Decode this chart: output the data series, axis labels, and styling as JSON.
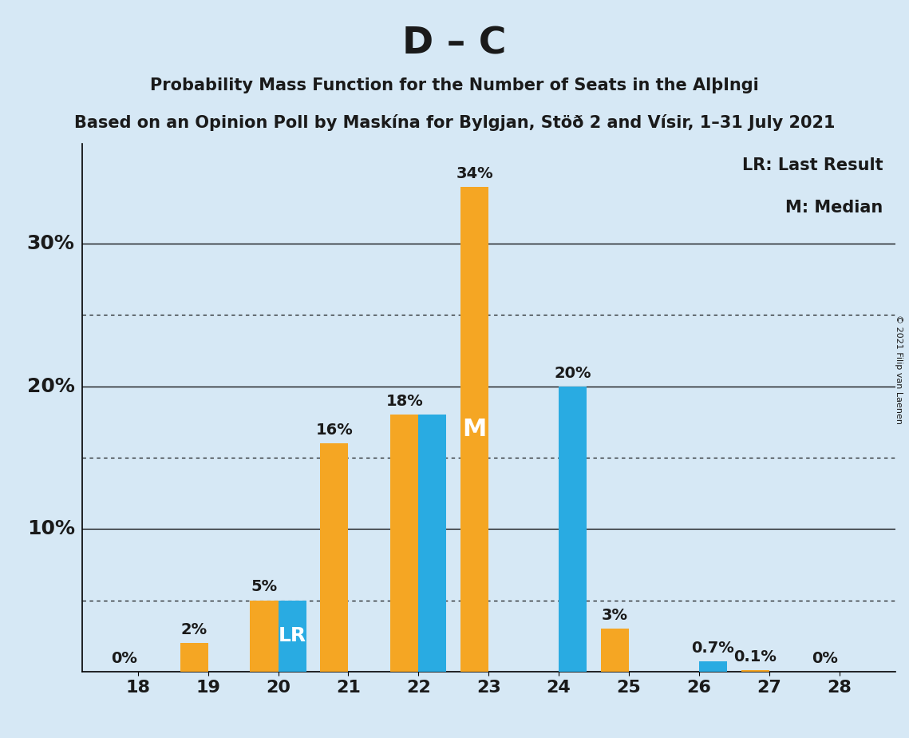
{
  "title": "D – C",
  "subtitle1": "Probability Mass Function for the Number of Seats in the AlþIngi",
  "subtitle2": "Based on an Opinion Poll by Maskína for Bylgjan, Stöð 2 and Vísir, 1–31 July 2021",
  "copyright": "© 2021 Filip van Laenen",
  "seats": [
    18,
    19,
    20,
    21,
    22,
    23,
    24,
    25,
    26,
    27,
    28
  ],
  "orange_values": [
    0.0,
    2.0,
    5.0,
    16.0,
    18.0,
    34.0,
    0.0,
    3.0,
    0.0,
    0.1,
    0.0
  ],
  "blue_values": [
    0.0,
    0.0,
    5.0,
    0.0,
    18.0,
    0.0,
    20.0,
    0.0,
    0.7,
    0.0,
    0.0
  ],
  "orange_labels": [
    "0%",
    "2%",
    "5%",
    "16%",
    "18%",
    "34%",
    "",
    "3%",
    "",
    "0.1%",
    "0%"
  ],
  "blue_labels": [
    "",
    "",
    "",
    "",
    "",
    "",
    "20%",
    "",
    "0.7%",
    "",
    ""
  ],
  "orange_color": "#F5A623",
  "blue_color": "#29ABE2",
  "background_color": "#D6E8F5",
  "text_color": "#1a1a1a",
  "ylim_max": 37,
  "ylabel_ticks": [
    10,
    20,
    30
  ],
  "ylabel_labels": [
    "10%",
    "20%",
    "30%"
  ],
  "solid_gridlines": [
    10,
    20,
    30
  ],
  "dotted_gridlines": [
    5,
    15,
    25
  ],
  "lr_seat": 20,
  "median_seat": 23,
  "legend_lr": "LR: Last Result",
  "legend_m": "M: Median",
  "bar_width": 0.4,
  "label_fontsize": 14,
  "tick_fontsize": 16,
  "ylabel_fontsize": 18,
  "title_fontsize": 34,
  "subtitle1_fontsize": 15,
  "subtitle2_fontsize": 15,
  "legend_fontsize": 15,
  "lr_label_fontsize": 18,
  "m_label_fontsize": 22
}
